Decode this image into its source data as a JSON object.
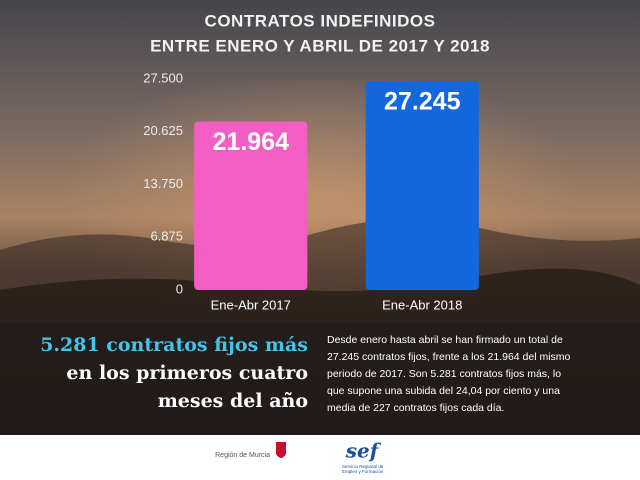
{
  "chart_data": {
    "type": "bar",
    "title": "CONTRATOS INDEFINIDOS",
    "subtitle": "ENTRE ENERO Y ABRIL DE 2017 Y 2018",
    "categories": [
      "Ene-Abr 2017",
      "Ene-Abr 2018"
    ],
    "values": [
      21964,
      27245
    ],
    "value_labels": [
      "21.964",
      "27.245"
    ],
    "colors": [
      "#f35ec4",
      "#1467dc"
    ],
    "ylim": [
      0,
      27500
    ],
    "yticks": [
      0,
      {
        "value": 6875,
        "label": "6.875"
      },
      {
        "value": 13750,
        "label": "13.750"
      },
      {
        "value": 20625,
        "label": "20.625"
      },
      {
        "value": 27500,
        "label": "27.500"
      }
    ],
    "grid": false
  },
  "headline": [
    "5.281 contratos fijos más",
    "en los primeros cuatro",
    "meses del año"
  ],
  "body": [
    "Desde enero hasta abril se han firmado un total de",
    "27.245 contratos fijos, frente a los 21.964 del mismo",
    "periodo de 2017. Son 5.281 contratos fijos más, lo",
    "que supone una subida del 24,04 por ciento y una",
    "media de 227 contratos fijos cada día."
  ],
  "footer": {
    "left_logo": "Región de Murcia",
    "right_logo": "sef",
    "right_caption": [
      "Servicio Regional de",
      "Empleo y Formación"
    ]
  }
}
